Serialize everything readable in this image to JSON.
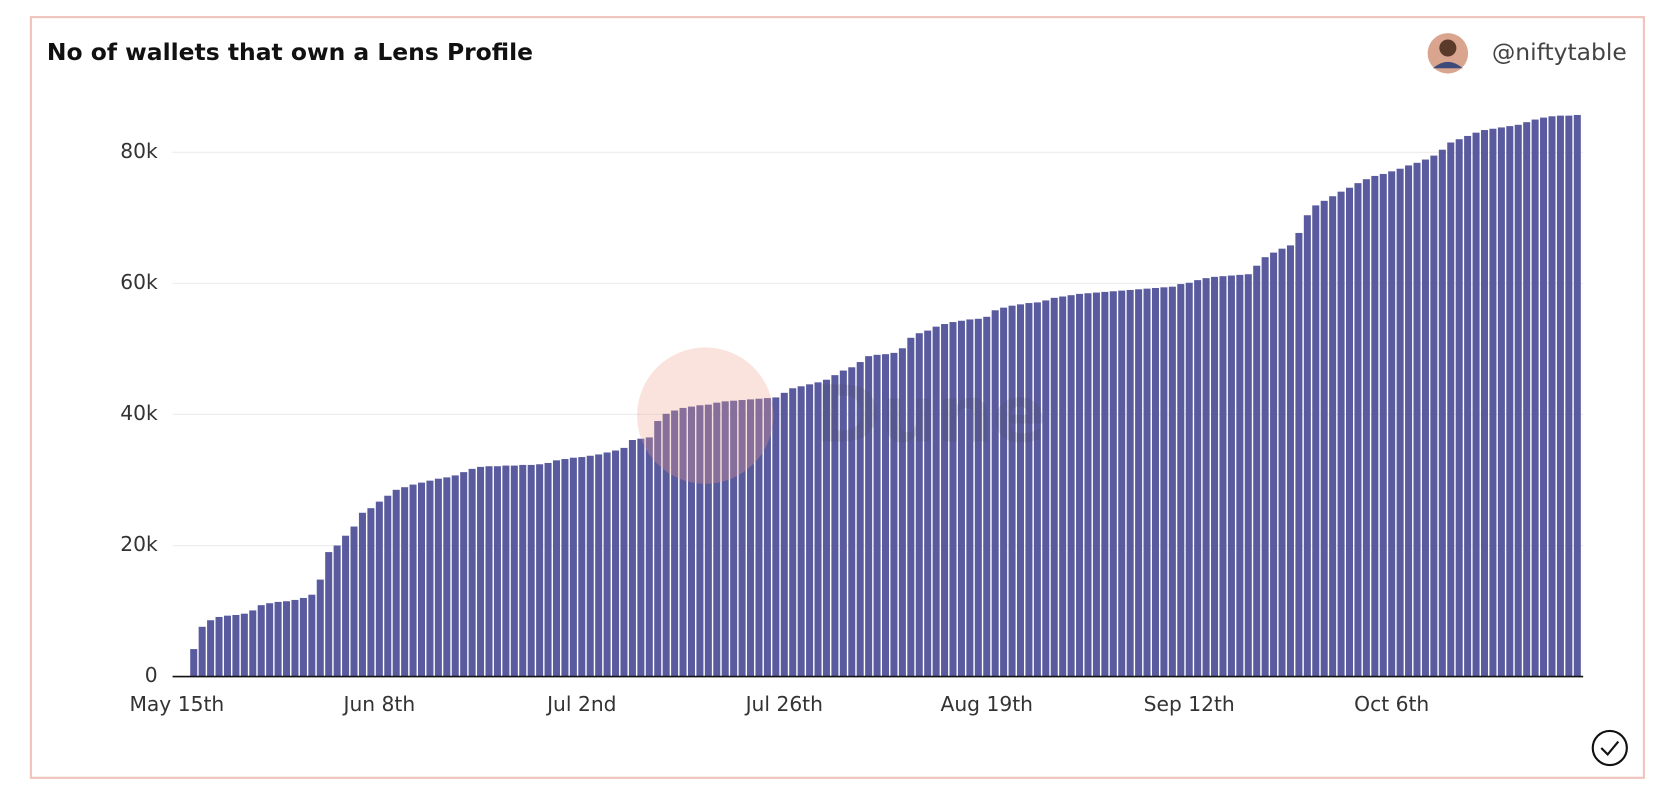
{
  "author": "@niftytable",
  "chart_data": {
    "type": "bar",
    "title": "No of wallets that own a Lens Profile",
    "watermark": "Dune",
    "categories": [
      "May 15th",
      null,
      null,
      null,
      null,
      null,
      null,
      null,
      null,
      null,
      null,
      null,
      null,
      null,
      null,
      null,
      null,
      null,
      null,
      null,
      null,
      null,
      null,
      null,
      "Jun 8th",
      null,
      null,
      null,
      null,
      null,
      null,
      null,
      null,
      null,
      null,
      null,
      null,
      null,
      null,
      null,
      null,
      null,
      null,
      null,
      null,
      null,
      null,
      null,
      "Jul 2nd",
      null,
      null,
      null,
      null,
      null,
      null,
      null,
      null,
      null,
      null,
      null,
      null,
      null,
      null,
      null,
      null,
      null,
      null,
      null,
      null,
      null,
      null,
      null,
      "Jul 26th",
      null,
      null,
      null,
      null,
      null,
      null,
      null,
      null,
      null,
      null,
      null,
      null,
      null,
      null,
      null,
      null,
      null,
      null,
      null,
      null,
      null,
      null,
      null,
      "Aug 19th",
      null,
      null,
      null,
      null,
      null,
      null,
      null,
      null,
      null,
      null,
      null,
      null,
      null,
      null,
      null,
      null,
      null,
      null,
      null,
      null,
      null,
      null,
      null,
      "Sep 12th",
      null,
      null,
      null,
      null,
      null,
      null,
      null,
      null,
      null,
      null,
      null,
      null,
      null,
      null,
      null,
      null,
      null,
      null,
      null,
      null,
      null,
      null,
      null,
      "Oct 6th",
      null,
      null,
      null,
      null,
      null,
      null,
      null,
      null,
      null,
      null,
      null,
      null,
      null,
      null,
      null,
      null,
      null,
      null,
      null,
      null,
      null,
      null
    ],
    "values": [
      null,
      null,
      4200,
      7600,
      8600,
      9100,
      9300,
      9400,
      9600,
      10100,
      10900,
      11200,
      11400,
      11500,
      11700,
      12000,
      12500,
      14800,
      19000,
      20000,
      21500,
      22900,
      25000,
      25700,
      26700,
      27600,
      28500,
      28900,
      29300,
      29600,
      29900,
      30200,
      30400,
      30700,
      31200,
      31700,
      32000,
      32100,
      32100,
      32200,
      32200,
      32300,
      32300,
      32400,
      32600,
      33000,
      33200,
      33400,
      33500,
      33700,
      33900,
      34200,
      34500,
      34900,
      36100,
      36300,
      36500,
      39000,
      40100,
      40600,
      41000,
      41200,
      41400,
      41500,
      41800,
      42000,
      42100,
      42200,
      42300,
      42400,
      42500,
      42600,
      43300,
      44000,
      44300,
      44600,
      44900,
      45300,
      46000,
      46700,
      47200,
      48000,
      48900,
      49100,
      49200,
      49400,
      50100,
      51700,
      52400,
      52800,
      53400,
      53800,
      54100,
      54300,
      54500,
      54600,
      54900,
      55900,
      56300,
      56600,
      56800,
      57000,
      57100,
      57400,
      57800,
      58000,
      58200,
      58400,
      58500,
      58600,
      58700,
      58800,
      58900,
      59000,
      59100,
      59200,
      59300,
      59400,
      59500,
      59900,
      60100,
      60500,
      60800,
      61000,
      61100,
      61200,
      61300,
      61400,
      62700,
      64000,
      64700,
      65300,
      65800,
      67700,
      70400,
      71900,
      72600,
      73300,
      74000,
      74600,
      75300,
      75900,
      76400,
      76700,
      77100,
      77500,
      78000,
      78400,
      78900,
      79500,
      80400,
      81500,
      82000,
      82500,
      83000,
      83400,
      83600,
      83800,
      84000,
      84200,
      84600,
      85000,
      85300,
      85500,
      85600,
      85600,
      85700
    ],
    "color": "#5a5b9f",
    "ylim": [
      0,
      86000
    ],
    "yticks": [
      0,
      {
        "value": 20000,
        "label": "20k"
      },
      {
        "value": 40000,
        "label": "40k"
      },
      {
        "value": 60000,
        "label": "60k"
      },
      {
        "value": 80000,
        "label": "80k"
      }
    ],
    "grid": true
  }
}
